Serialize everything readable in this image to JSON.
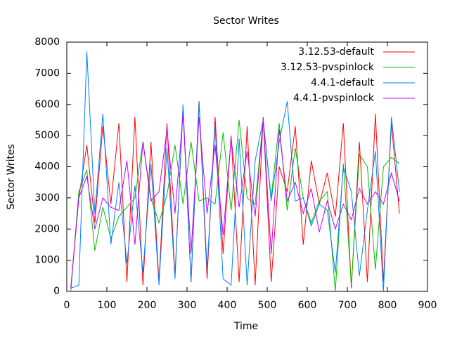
{
  "chart_data": {
    "type": "line",
    "title": "Sector Writes",
    "xlabel": "Time",
    "ylabel": "Sector Writes",
    "x": [
      10,
      30,
      50,
      70,
      90,
      110,
      130,
      150,
      170,
      190,
      210,
      230,
      250,
      270,
      290,
      310,
      330,
      350,
      370,
      390,
      410,
      430,
      450,
      470,
      490,
      510,
      530,
      550,
      570,
      590,
      610,
      630,
      650,
      670,
      690,
      710,
      730,
      750,
      770,
      790,
      810,
      830
    ],
    "series": [
      {
        "name": "3.12.53-default",
        "color": "#ff0000",
        "values": [
          100,
          3000,
          4700,
          2200,
          5300,
          2800,
          5400,
          300,
          5600,
          200,
          4800,
          300,
          5400,
          500,
          5900,
          300,
          6100,
          400,
          5600,
          1200,
          5000,
          300,
          5300,
          200,
          5600,
          300,
          4000,
          3200,
          5300,
          1500,
          4200,
          2800,
          3800,
          2400,
          5400,
          100,
          4800,
          300,
          5700,
          300,
          5400,
          2500
        ]
      },
      {
        "name": "3.12.53-pvspinlock",
        "color": "#00c000",
        "values": [
          0,
          3200,
          3900,
          1300,
          2700,
          1700,
          2400,
          2700,
          3000,
          4800,
          3000,
          2200,
          3100,
          4700,
          2800,
          4800,
          2900,
          3000,
          2800,
          5100,
          2600,
          5500,
          3000,
          2800,
          5500,
          3000,
          5400,
          2600,
          4600,
          3000,
          2200,
          2900,
          3200,
          0,
          4100,
          200,
          4400,
          4000,
          700,
          4000,
          4300,
          4100
        ]
      },
      {
        "name": "4.4.1-default",
        "color": "#0080ff",
        "values": [
          100,
          200,
          7700,
          2500,
          5700,
          1500,
          3500,
          900,
          3400,
          600,
          4100,
          200,
          4600,
          400,
          6000,
          300,
          6100,
          700,
          5300,
          400,
          200,
          4900,
          200,
          4200,
          5500,
          2900,
          4800,
          6100,
          2900,
          3000,
          2100,
          2800,
          2600,
          600,
          4000,
          3200,
          500,
          2600,
          4500,
          0,
          5600,
          3200
        ]
      },
      {
        "name": "4.4.1-pvspinlock",
        "color": "#c000ff",
        "values": [
          100,
          3000,
          3700,
          2000,
          3000,
          2700,
          2600,
          4200,
          1500,
          4800,
          2900,
          3200,
          5200,
          2500,
          5700,
          1200,
          5600,
          2500,
          4700,
          1800,
          4900,
          2700,
          4500,
          2400,
          5500,
          1200,
          5200,
          2900,
          3500,
          2500,
          3300,
          1900,
          2900,
          2000,
          2800,
          2300,
          3300,
          2800,
          3200,
          2800,
          3800,
          2900
        ]
      }
    ],
    "xlim": [
      0,
      900
    ],
    "xticks": [
      0,
      100,
      200,
      300,
      400,
      500,
      600,
      700,
      800,
      900
    ],
    "ylim": [
      0,
      8000
    ],
    "yticks": [
      0,
      1000,
      2000,
      3000,
      4000,
      5000,
      6000,
      7000,
      8000
    ],
    "legend": "upper right"
  }
}
